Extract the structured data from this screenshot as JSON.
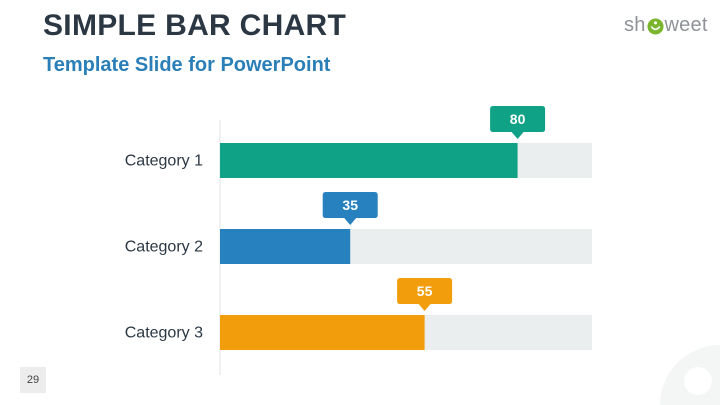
{
  "slide": {
    "title": "SIMPLE BAR CHART",
    "subtitle": "Template Slide for PowerPoint",
    "page_number": "29",
    "logo_prefix": "sh",
    "logo_suffix": "weet"
  },
  "colors": {
    "track": "#ebeeee",
    "axis": "#e2e4e6",
    "bars": [
      "#0fa286",
      "#2781be",
      "#f29e0c"
    ]
  },
  "chart_data": {
    "type": "bar",
    "orientation": "horizontal",
    "categories": [
      "Category 1",
      "Category 2",
      "Category 3"
    ],
    "values": [
      80,
      35,
      55
    ],
    "data_labels": [
      "80",
      "35",
      "55"
    ],
    "xlim": [
      0,
      100
    ],
    "title": "",
    "xlabel": "",
    "ylabel": "",
    "grid": false,
    "legend": "none"
  }
}
